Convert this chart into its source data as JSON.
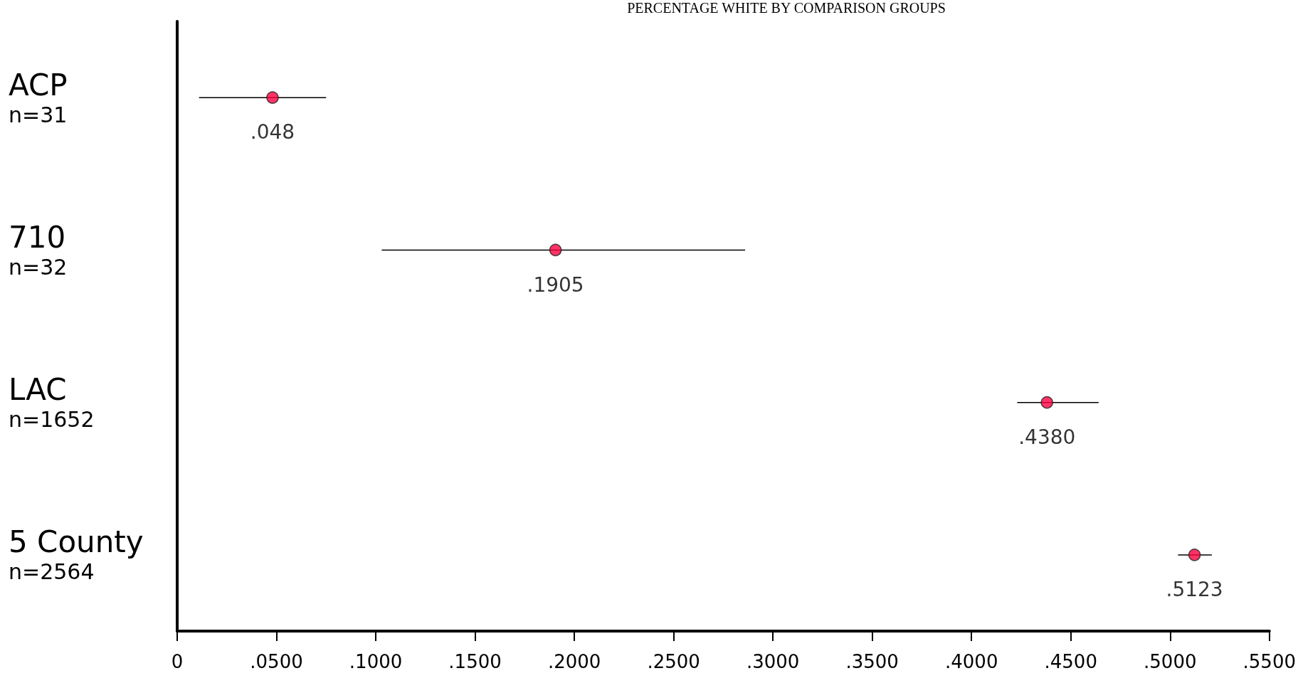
{
  "chart_data": {
    "type": "scatter",
    "title": "PERCENTAGE WHITE BY COMPARISON GROUPS",
    "orientation": "horizontal",
    "categories": [
      "ACP\nn=31",
      "710\nn=32",
      "LAC\nn=1652",
      "5 County\nn=2564"
    ],
    "values": [
      0.048,
      0.1905,
      0.438,
      0.5123
    ],
    "value_labels": [
      ".048",
      ".1905",
      ".4380",
      ".5123"
    ],
    "errors": [
      [
        0.011,
        0.075
      ],
      [
        0.103,
        0.286
      ],
      [
        0.423,
        0.464
      ],
      [
        0.504,
        0.521
      ]
    ],
    "color": "#ff0040",
    "marker": "circle",
    "grid": false,
    "xlim": [
      0,
      0.55
    ],
    "xticks": [
      0,
      {
        "value": 0.05,
        "label": ".0500"
      },
      {
        "value": 0.1,
        "label": ".1000"
      },
      {
        "value": 0.15,
        "label": ".1500"
      },
      {
        "value": 0.2,
        "label": ".2000"
      },
      {
        "value": 0.25,
        "label": ".2500"
      },
      {
        "value": 0.3,
        "label": ".3000"
      },
      {
        "value": 0.35,
        "label": ".3500"
      },
      {
        "value": 0.4,
        "label": ".4000"
      },
      {
        "value": 0.45,
        "label": ".4500"
      },
      {
        "value": 0.5,
        "label": ".5000"
      },
      {
        "value": 0.55,
        "label": ".5500"
      }
    ]
  }
}
